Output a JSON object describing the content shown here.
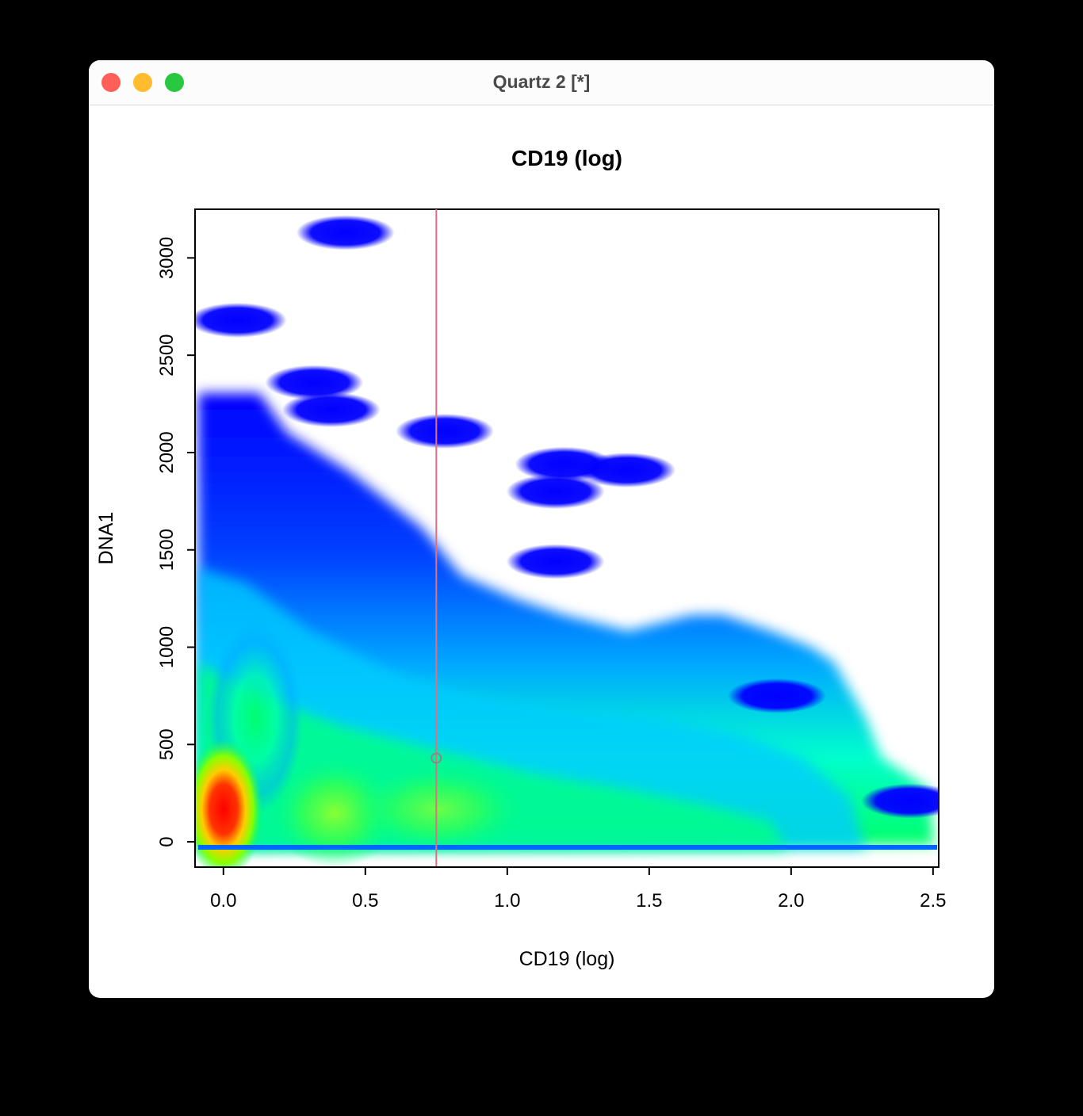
{
  "window": {
    "title": "Quartz 2 [*]",
    "buttons": {
      "close": "#fe5f57",
      "minimize": "#febc2e",
      "zoom": "#28c840"
    }
  },
  "chart_data": {
    "type": "heatmap",
    "title": "CD19 (log)",
    "xlabel": "CD19 (log)",
    "ylabel": "DNA1",
    "xlim": [
      -0.1,
      2.52
    ],
    "ylim": [
      -130,
      3250
    ],
    "x_ticks": [
      0.0,
      0.5,
      1.0,
      1.5,
      2.0,
      2.5
    ],
    "x_tick_labels": [
      "0.0",
      "0.5",
      "1.0",
      "1.5",
      "2.0",
      "2.5"
    ],
    "y_ticks": [
      0,
      500,
      1000,
      1500,
      2000,
      2500,
      3000
    ],
    "y_tick_labels": [
      "0",
      "500",
      "1000",
      "1500",
      "2000",
      "2500",
      "3000"
    ],
    "colormap": [
      "#0000ff",
      "#00aaff",
      "#00ffcc",
      "#00ff55",
      "#88ff00",
      "#ffff00",
      "#ff8800",
      "#ff0000"
    ],
    "density_peaks": [
      {
        "x": 0.03,
        "y": 130,
        "level": "high"
      },
      {
        "x": 0.4,
        "y": 110,
        "level": "medium"
      },
      {
        "x": 0.75,
        "y": 180,
        "level": "medium"
      },
      {
        "x": 1.2,
        "y": 200,
        "level": "medium"
      }
    ],
    "isolated_clusters": [
      {
        "x": 0.43,
        "y": 3130
      },
      {
        "x": 0.05,
        "y": 2680
      },
      {
        "x": 0.32,
        "y": 2360
      },
      {
        "x": 0.38,
        "y": 2220
      },
      {
        "x": 0.78,
        "y": 2110
      },
      {
        "x": 1.2,
        "y": 1940
      },
      {
        "x": 1.42,
        "y": 1910
      },
      {
        "x": 1.17,
        "y": 1800
      },
      {
        "x": 1.17,
        "y": 1440
      },
      {
        "x": 1.95,
        "y": 750
      },
      {
        "x": 2.42,
        "y": 210
      }
    ],
    "vertical_line": {
      "x": 0.75,
      "color": "#e07080"
    },
    "marker_point": {
      "x": 0.75,
      "y": 430
    },
    "grid": false,
    "legend": "none"
  }
}
